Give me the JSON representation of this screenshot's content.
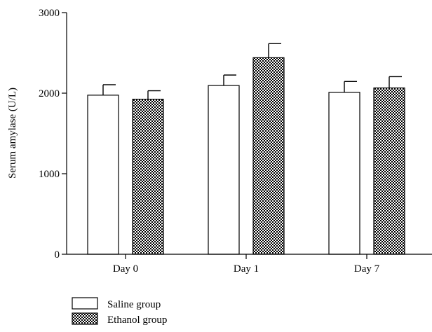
{
  "chart_data": {
    "type": "bar",
    "title": "",
    "xlabel": "",
    "ylabel": "Serum amylase (U/L)",
    "ylim": [
      0,
      3000
    ],
    "yticks": [
      0,
      1000,
      2000,
      3000
    ],
    "categories": [
      "Day 0",
      "Day 1",
      "Day 7"
    ],
    "grid": false,
    "legend_position": "bottom-left",
    "series": [
      {
        "name": "Saline group",
        "fill": "#ffffff",
        "pattern": "none",
        "values": [
          1975,
          2095,
          2010
        ],
        "errors": [
          130,
          130,
          135
        ]
      },
      {
        "name": "Ethanol group",
        "fill": "#000000",
        "pattern": "checkered",
        "values": [
          1925,
          2440,
          2065
        ],
        "errors": [
          105,
          175,
          140
        ]
      }
    ]
  }
}
